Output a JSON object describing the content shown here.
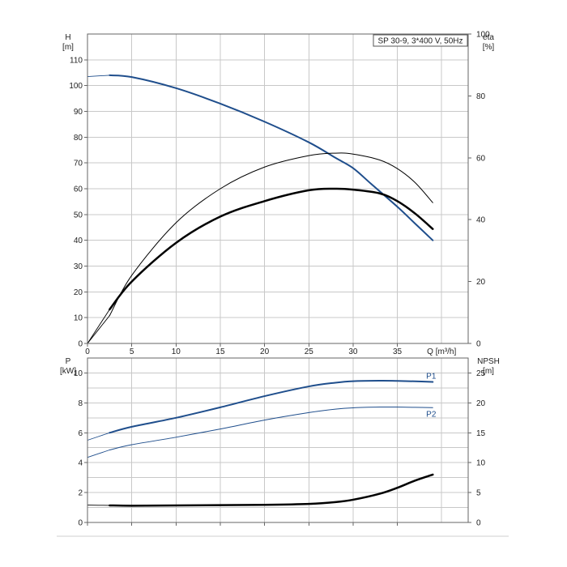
{
  "chart_data": [
    {
      "type": "line",
      "legend_text": "SP 30-9, 3*400 V, 50Hz",
      "xlabel": "Q [m³/h]",
      "x_ticks": [
        0,
        5,
        10,
        15,
        20,
        25,
        30,
        35
      ],
      "xlim": [
        0,
        43
      ],
      "left_axis": {
        "name": "H",
        "unit": "[m]",
        "ylim": [
          0,
          120
        ],
        "ticks": [
          0,
          10,
          20,
          30,
          40,
          50,
          60,
          70,
          80,
          90,
          100,
          110
        ]
      },
      "right_axis": {
        "name": "eta",
        "unit": "[%]",
        "ylim": [
          0,
          100
        ],
        "ticks": [
          0,
          20,
          40,
          60,
          80,
          100
        ]
      },
      "grid": true,
      "series": [
        {
          "axis": "left",
          "color": "#1f4e8c",
          "width": 2,
          "x": [
            0,
            2.5,
            5,
            10,
            15,
            20,
            25,
            28,
            30,
            32,
            35,
            37,
            39
          ],
          "values": [
            103.5,
            104,
            103.3,
            99,
            93,
            86,
            78,
            72,
            68,
            62,
            53,
            46.5,
            40
          ],
          "extrapolated_before": 2.5
        },
        {
          "axis": "right",
          "color": "#000000",
          "width": 1,
          "x": [
            0,
            2.5,
            5,
            10,
            15,
            20,
            25,
            28,
            30,
            33,
            35,
            37,
            39
          ],
          "values": [
            0,
            9,
            22,
            39,
            50,
            57,
            60.7,
            61.5,
            61.2,
            59.3,
            56.5,
            52,
            45.5
          ],
          "extrapolated_before": 2.5
        },
        {
          "axis": "right",
          "color": "#000000",
          "width": 2.5,
          "x": [
            0,
            2.5,
            5,
            10,
            15,
            20,
            25,
            28,
            30,
            33,
            35,
            37,
            39
          ],
          "values": [
            0,
            11,
            20,
            32.5,
            41,
            46,
            49.5,
            50,
            49.7,
            48.5,
            46,
            42,
            37
          ],
          "extrapolated_before": 2.5
        }
      ]
    },
    {
      "type": "line",
      "x_ticks": [
        0,
        5,
        10,
        15,
        20,
        25,
        30,
        35
      ],
      "xlim": [
        0,
        43
      ],
      "left_axis": {
        "name": "P",
        "unit": "[kW]",
        "ylim": [
          0,
          11
        ],
        "ticks": [
          0,
          2,
          4,
          6,
          8,
          10
        ]
      },
      "right_axis": {
        "name": "NPSH",
        "unit": "[m]",
        "ylim": [
          0,
          27.5
        ],
        "ticks": [
          0,
          5,
          10,
          15,
          20,
          25
        ]
      },
      "grid": true,
      "series": [
        {
          "name": "P1",
          "axis": "left",
          "color": "#1f4e8c",
          "width": 2,
          "x": [
            0,
            2.5,
            5,
            10,
            15,
            20,
            25,
            28,
            30,
            33,
            35,
            37,
            39
          ],
          "values": [
            5.5,
            6.0,
            6.4,
            7.0,
            7.7,
            8.45,
            9.1,
            9.35,
            9.45,
            9.48,
            9.47,
            9.44,
            9.4
          ],
          "extrapolated_before": 2.5
        },
        {
          "name": "P2",
          "axis": "left",
          "color": "#1f4e8c",
          "width": 1,
          "x": [
            0,
            2.5,
            5,
            10,
            15,
            20,
            25,
            28,
            30,
            33,
            35,
            37,
            39
          ],
          "values": [
            4.35,
            4.85,
            5.2,
            5.7,
            6.25,
            6.85,
            7.35,
            7.58,
            7.67,
            7.72,
            7.72,
            7.7,
            7.68
          ],
          "extrapolated_before": 2.5
        },
        {
          "axis": "right",
          "color": "#000000",
          "width": 2.5,
          "x": [
            0,
            2.5,
            5,
            10,
            15,
            20,
            25,
            28,
            30,
            33,
            35,
            37,
            39
          ],
          "values": [
            2.9,
            2.85,
            2.8,
            2.85,
            2.9,
            2.95,
            3.1,
            3.4,
            3.8,
            4.8,
            5.8,
            7.0,
            8.0
          ],
          "extrapolated_before": 2.5
        }
      ]
    }
  ]
}
